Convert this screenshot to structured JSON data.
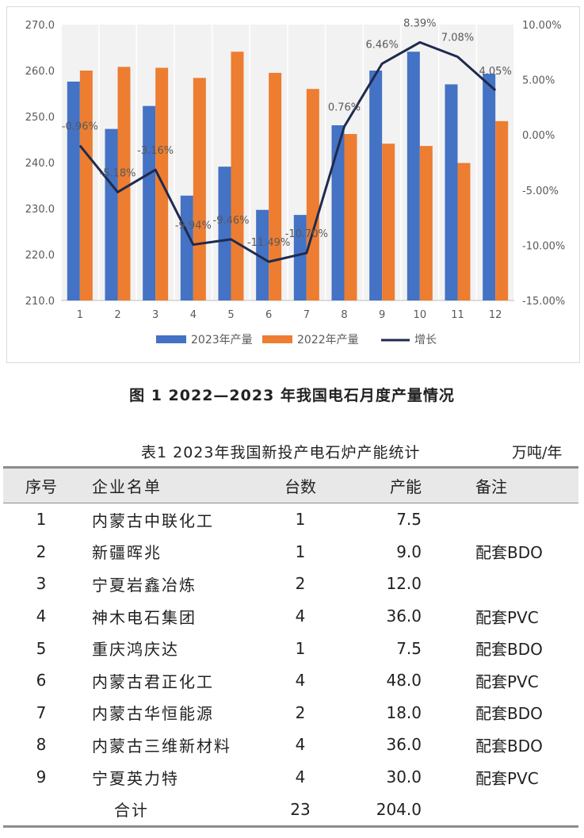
{
  "chart_data": {
    "type": "bar",
    "categories": [
      "1",
      "2",
      "3",
      "4",
      "5",
      "6",
      "7",
      "8",
      "9",
      "10",
      "11",
      "12"
    ],
    "series": [
      {
        "name": "2023年产量",
        "type": "bar",
        "axis": "left",
        "color": "#4472C4",
        "values": [
          257.6,
          247.3,
          252.3,
          232.8,
          239.1,
          229.7,
          228.6,
          248.1,
          260.0,
          264.1,
          257.0,
          259.3
        ]
      },
      {
        "name": "2022年产量",
        "type": "bar",
        "axis": "left",
        "color": "#ED7D31",
        "values": [
          260.0,
          260.8,
          260.6,
          258.4,
          264.1,
          259.5,
          256.0,
          246.2,
          244.1,
          243.6,
          239.9,
          249.0
        ]
      },
      {
        "name": "增长",
        "type": "line",
        "axis": "right",
        "color": "#1F2A4D",
        "values": [
          -0.96,
          -5.18,
          -3.16,
          -9.94,
          -9.46,
          -11.49,
          -10.7,
          0.76,
          6.46,
          8.39,
          7.08,
          4.05
        ],
        "labels": [
          "-0.96%",
          "-5.18%",
          "-3.16%",
          "-9.94%",
          "-9.46%",
          "-11.49%",
          "-10.70%",
          "0.76%",
          "6.46%",
          "8.39%",
          "7.08%",
          "4.05%"
        ]
      }
    ],
    "left_axis": {
      "min": 210,
      "max": 270,
      "ticks": [
        "270.0",
        "260.0",
        "250.0",
        "240.0",
        "230.0",
        "220.0",
        "210.0"
      ]
    },
    "right_axis": {
      "min": -15,
      "max": 10,
      "ticks": [
        "10.00%",
        "5.00%",
        "0.00%",
        "-5.00%",
        "-10.00%",
        "-15.00%"
      ]
    },
    "legend_position": "bottom",
    "grid": "vertical"
  },
  "figure_caption": "图 1 2022—2023 年我国电石月度产量情况",
  "table": {
    "caption": "表1  2023年我国新投产电石炉产能统计",
    "unit": "万吨/年",
    "headers": {
      "idx": "序号",
      "name": "企业名单",
      "count": "台数",
      "capacity": "产能",
      "note": "备注"
    },
    "rows": [
      {
        "idx": "1",
        "name": "内蒙古中联化工",
        "count": "1",
        "capacity": "7.5",
        "note": ""
      },
      {
        "idx": "2",
        "name": "新疆晖兆",
        "count": "1",
        "capacity": "9.0",
        "note": "配套BDO"
      },
      {
        "idx": "3",
        "name": "宁夏岩鑫冶炼",
        "count": "2",
        "capacity": "12.0",
        "note": ""
      },
      {
        "idx": "4",
        "name": "神木电石集团",
        "count": "4",
        "capacity": "36.0",
        "note": "配套PVC"
      },
      {
        "idx": "5",
        "name": "重庆鸿庆达",
        "count": "1",
        "capacity": "7.5",
        "note": "配套BDO"
      },
      {
        "idx": "6",
        "name": "内蒙古君正化工",
        "count": "4",
        "capacity": "48.0",
        "note": "配套PVC"
      },
      {
        "idx": "7",
        "name": "内蒙古华恒能源",
        "count": "2",
        "capacity": "18.0",
        "note": "配套BDO"
      },
      {
        "idx": "8",
        "name": "内蒙古三维新材料",
        "count": "4",
        "capacity": "36.0",
        "note": "配套BDO"
      },
      {
        "idx": "9",
        "name": "宁夏英力特",
        "count": "4",
        "capacity": "30.0",
        "note": "配套PVC"
      }
    ],
    "total": {
      "label": "合计",
      "count": "23",
      "capacity": "204.0"
    }
  }
}
